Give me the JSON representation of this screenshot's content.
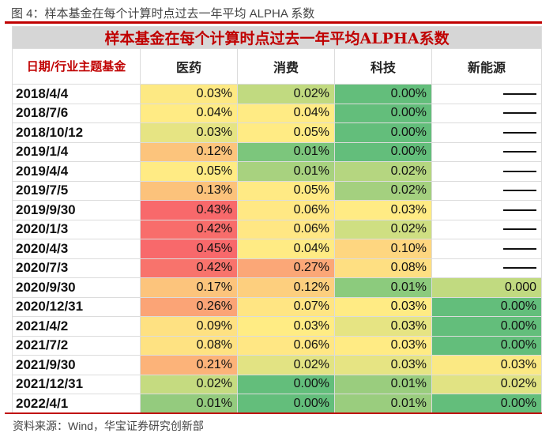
{
  "figure_title": "图 4：样本基金在每个计算时点过去一年平均 ALPHA 系数",
  "table_caption": "样本基金在每个计算时点过去一年平均ALPHA系数",
  "header": {
    "first": "日期/行业主题基金",
    "columns": [
      "医药",
      "消费",
      "科技",
      "新能源"
    ]
  },
  "dash_symbol": "——",
  "rows": [
    {
      "date": "2018/4/4",
      "values": [
        "0.03%",
        "0.02%",
        "0.00%",
        null
      ],
      "colors": [
        "#fde983",
        "#c1da80",
        "#63be7b",
        null
      ]
    },
    {
      "date": "2018/7/6",
      "values": [
        "0.04%",
        "0.04%",
        "0.00%",
        null
      ],
      "colors": [
        "#ffeb84",
        "#ffeb84",
        "#63be7b",
        null
      ]
    },
    {
      "date": "2018/10/12",
      "values": [
        "0.03%",
        "0.05%",
        "0.00%",
        null
      ],
      "colors": [
        "#e6e483",
        "#ffeb84",
        "#63be7b",
        null
      ]
    },
    {
      "date": "2019/1/4",
      "values": [
        "0.12%",
        "0.01%",
        "0.00%",
        null
      ],
      "colors": [
        "#fcc47c",
        "#7cc67c",
        "#63be7b",
        null
      ]
    },
    {
      "date": "2019/4/4",
      "values": [
        "0.05%",
        "0.01%",
        "0.02%",
        null
      ],
      "colors": [
        "#ffeb84",
        "#a8d27f",
        "#b5d680",
        null
      ]
    },
    {
      "date": "2019/7/5",
      "values": [
        "0.13%",
        "0.05%",
        "0.02%",
        null
      ],
      "colors": [
        "#fcc27b",
        "#ffea84",
        "#a4d07f",
        null
      ]
    },
    {
      "date": "2019/9/30",
      "values": [
        "0.43%",
        "0.06%",
        "0.03%",
        null
      ],
      "colors": [
        "#f8696b",
        "#ffe884",
        "#ffeb84",
        null
      ]
    },
    {
      "date": "2020/1/3",
      "values": [
        "0.42%",
        "0.06%",
        "0.02%",
        null
      ],
      "colors": [
        "#f86d6b",
        "#ffe784",
        "#cfdf82",
        null
      ]
    },
    {
      "date": "2020/4/3",
      "values": [
        "0.45%",
        "0.04%",
        "0.10%",
        null
      ],
      "colors": [
        "#f8696b",
        "#ffeb84",
        "#fed680",
        null
      ]
    },
    {
      "date": "2020/7/3",
      "values": [
        "0.42%",
        "0.27%",
        "0.08%",
        null
      ],
      "colors": [
        "#f8736c",
        "#fba777",
        "#fedf82",
        null
      ]
    },
    {
      "date": "2020/9/30",
      "values": [
        "0.17%",
        "0.12%",
        "0.01%",
        "0.000"
      ],
      "colors": [
        "#fcc47c",
        "#fdcf7e",
        "#8ccb7d",
        "#c1da80"
      ]
    },
    {
      "date": "2020/12/31",
      "values": [
        "0.26%",
        "0.07%",
        "0.03%",
        "0.00%"
      ],
      "colors": [
        "#fba476",
        "#ffe583",
        "#ffeb84",
        "#63be7b"
      ]
    },
    {
      "date": "2021/4/2",
      "values": [
        "0.09%",
        "0.03%",
        "0.03%",
        "0.00%"
      ],
      "colors": [
        "#fee182",
        "#ffec84",
        "#e6e483",
        "#63be7b"
      ]
    },
    {
      "date": "2021/7/2",
      "values": [
        "0.08%",
        "0.06%",
        "0.03%",
        "0.00%"
      ],
      "colors": [
        "#fee282",
        "#ffe784",
        "#ffeb84",
        "#63be7b"
      ]
    },
    {
      "date": "2021/9/30",
      "values": [
        "0.21%",
        "0.02%",
        "0.03%",
        "0.03%"
      ],
      "colors": [
        "#fcb379",
        "#e2e383",
        "#e6e483",
        "#fbe983"
      ]
    },
    {
      "date": "2021/12/31",
      "values": [
        "0.02%",
        "0.00%",
        "0.01%",
        "0.02%"
      ],
      "colors": [
        "#c5db80",
        "#63be7b",
        "#9acd7e",
        "#e1e383"
      ]
    },
    {
      "date": "2022/4/1",
      "values": [
        "0.01%",
        "0.00%",
        "0.01%",
        "0.00%"
      ],
      "colors": [
        "#94cb7e",
        "#63be7b",
        "#9acd7e",
        "#63be7b"
      ]
    }
  ],
  "source": "资料来源：Wind，华宝证券研究创新部"
}
